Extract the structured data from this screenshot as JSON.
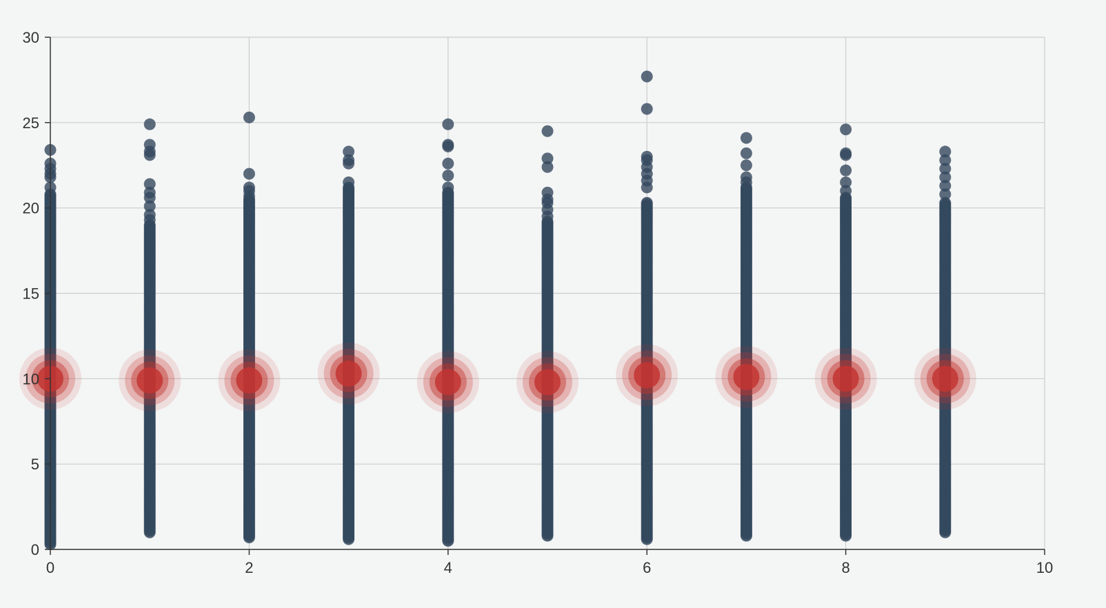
{
  "chart_data": {
    "type": "scatter",
    "title": "",
    "xlabel": "",
    "ylabel": "",
    "xlim": [
      0,
      10
    ],
    "ylim": [
      0,
      30
    ],
    "x_ticks": [
      "0",
      "2",
      "4",
      "6",
      "8",
      "10"
    ],
    "y_ticks": [
      "0",
      "5",
      "10",
      "15",
      "20",
      "25",
      "30"
    ],
    "grid": true,
    "legend": "none",
    "colors": {
      "points": "#34495e",
      "centers": "#c23531",
      "background": "#f4f5f5",
      "grid": "#cccccc",
      "axis": "#333333"
    },
    "series": [
      {
        "kind": "points",
        "columns": [
          {
            "x": 0,
            "y_min": 0.3,
            "y_max": 20.8,
            "outliers": [
              21.2,
              21.8,
              22.0,
              22.3,
              22.6,
              23.4
            ]
          },
          {
            "x": 1,
            "y_min": 1.0,
            "y_max": 19.0,
            "outliers": [
              19.3,
              19.6,
              20.1,
              20.6,
              20.9,
              21.4,
              23.1,
              23.3,
              23.7,
              24.9
            ]
          },
          {
            "x": 2,
            "y_min": 0.7,
            "y_max": 20.5,
            "outliers": [
              20.7,
              21.0,
              21.2,
              22.0,
              25.3
            ]
          },
          {
            "x": 3,
            "y_min": 0.6,
            "y_max": 21.2,
            "outliers": [
              21.5,
              22.6,
              22.8,
              23.3
            ]
          },
          {
            "x": 4,
            "y_min": 0.5,
            "y_max": 20.9,
            "outliers": [
              21.2,
              21.9,
              22.6,
              23.6,
              23.7,
              24.9
            ]
          },
          {
            "x": 5,
            "y_min": 0.8,
            "y_max": 19.2,
            "outliers": [
              19.5,
              19.9,
              20.3,
              20.5,
              20.9,
              22.4,
              22.9,
              24.5
            ]
          },
          {
            "x": 6,
            "y_min": 0.6,
            "y_max": 20.3,
            "outliers": [
              21.2,
              21.6,
              22.0,
              22.4,
              22.8,
              23.0,
              25.8,
              27.7
            ]
          },
          {
            "x": 7,
            "y_min": 0.8,
            "y_max": 21.2,
            "outliers": [
              21.5,
              21.8,
              22.5,
              23.2,
              24.1
            ]
          },
          {
            "x": 8,
            "y_min": 0.8,
            "y_max": 20.6,
            "outliers": [
              21.0,
              21.5,
              22.2,
              23.1,
              23.2,
              24.6
            ]
          },
          {
            "x": 9,
            "y_min": 1.0,
            "y_max": 20.3,
            "outliers": [
              20.8,
              21.3,
              21.8,
              22.3,
              22.8,
              23.3
            ]
          }
        ]
      },
      {
        "kind": "centers",
        "points": [
          {
            "x": 0,
            "y": 10.0
          },
          {
            "x": 1,
            "y": 9.9
          },
          {
            "x": 2,
            "y": 9.9
          },
          {
            "x": 3,
            "y": 10.3
          },
          {
            "x": 4,
            "y": 9.8
          },
          {
            "x": 5,
            "y": 9.8
          },
          {
            "x": 6,
            "y": 10.2
          },
          {
            "x": 7,
            "y": 10.1
          },
          {
            "x": 8,
            "y": 10.0
          },
          {
            "x": 9,
            "y": 10.0
          }
        ]
      }
    ]
  }
}
